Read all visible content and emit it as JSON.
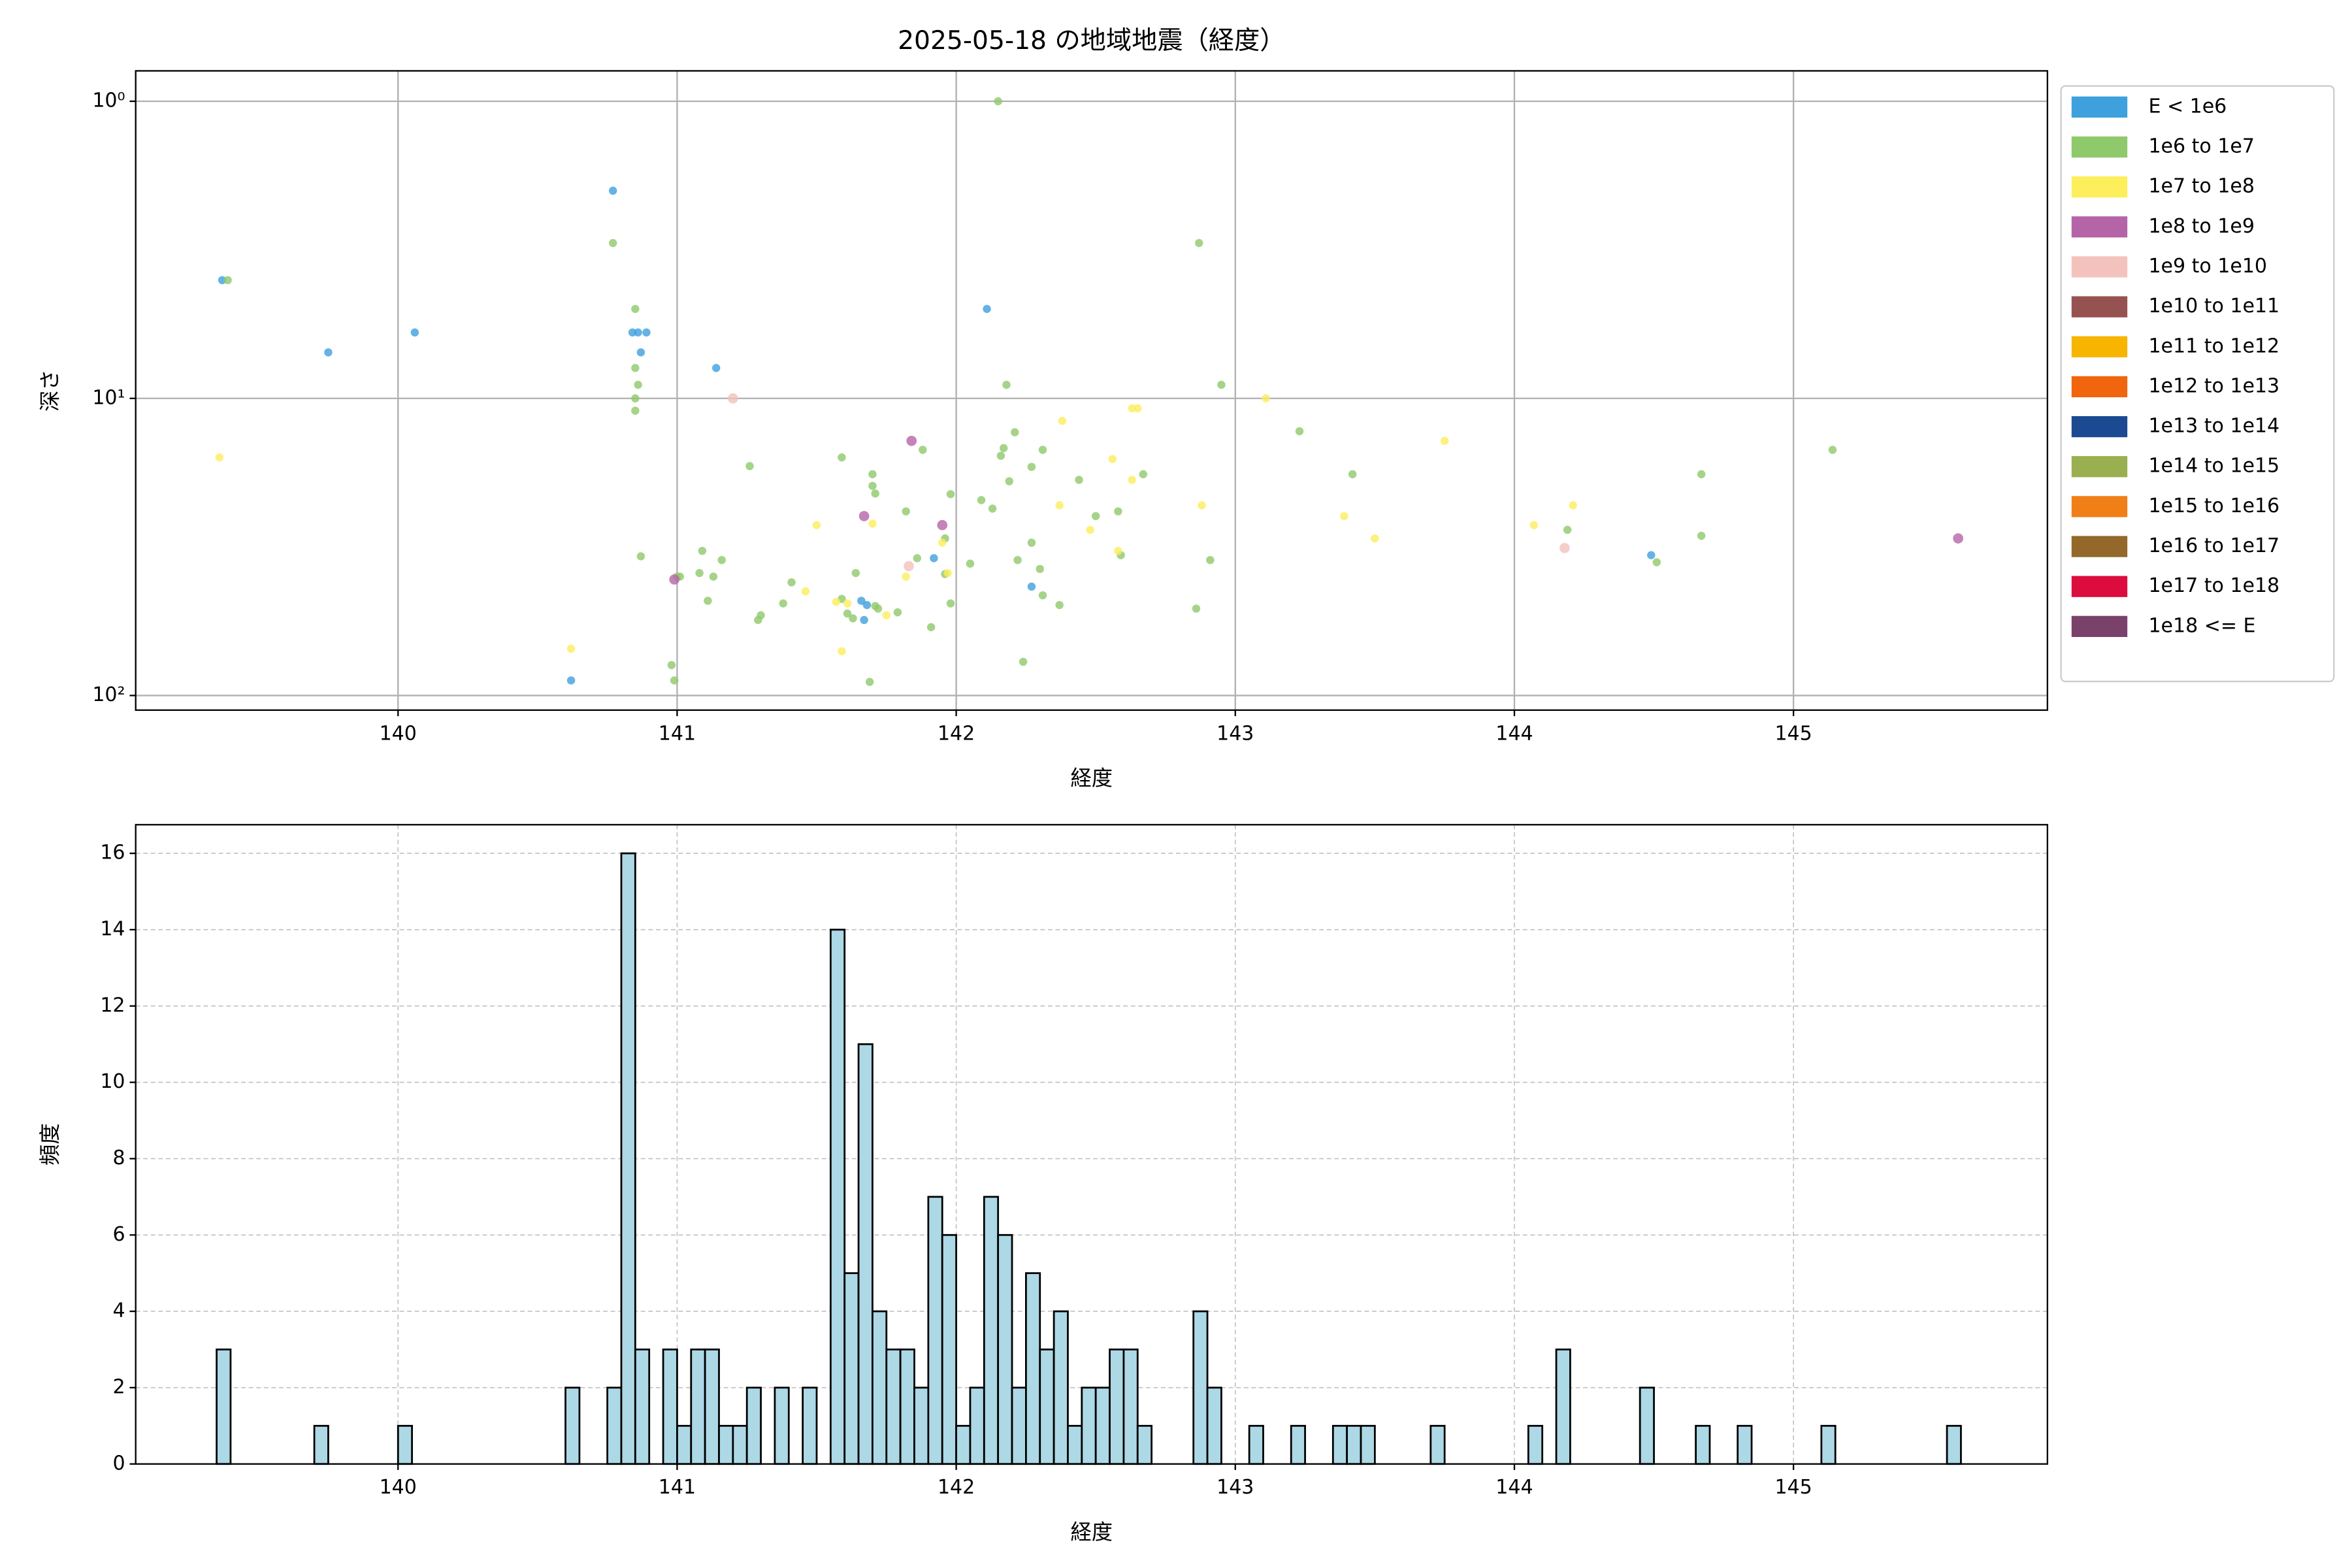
{
  "chart_data": [
    {
      "type": "scatter",
      "title": "2025-05-18 の地域地震（経度）",
      "xlabel": "経度",
      "ylabel": "深さ",
      "xlim": [
        139.06,
        145.91
      ],
      "ylim": [
        0.79,
        112
      ],
      "y_log": true,
      "y_inverted": true,
      "xticks": [
        140,
        141,
        142,
        143,
        144,
        145
      ],
      "yticks": [
        {
          "value": 1,
          "label": "10⁰"
        },
        {
          "value": 10,
          "label": "10¹"
        },
        {
          "value": 100,
          "label": "10²"
        }
      ],
      "grid": true,
      "legend": "outside-right",
      "series": [
        {
          "name": "E < 1e6",
          "color": "#3ea0dd",
          "x": [
            139.37,
            139.75,
            140.06,
            140.77,
            140.84,
            140.86,
            140.89,
            140.87,
            141.14,
            142.11,
            140.62,
            141.92,
            141.66,
            141.68,
            141.67,
            142.27,
            144.49
          ],
          "values": [
            4.0,
            7.0,
            6.0,
            2.0,
            6.0,
            6.0,
            6.0,
            7.0,
            7.9,
            5.0,
            89,
            34.5,
            48,
            49.6,
            55.7,
            43,
            33.7
          ]
        },
        {
          "name": "1e6 to 1e7",
          "color": "#8ec96b",
          "x": [
            139.39,
            142.15,
            140.77,
            142.87,
            140.85,
            140.85,
            140.86,
            140.85,
            140.85,
            142.18,
            142.95,
            143.23,
            145.14,
            144.67,
            144.19,
            144.67,
            144.51,
            143.42,
            140.87,
            141.26,
            141.59,
            141.7,
            141.7,
            141.71,
            141.88,
            141.82,
            141.98,
            142.09,
            142.13,
            142.16,
            142.17,
            142.21,
            142.19,
            142.27,
            142.31,
            142.44,
            142.5,
            142.58,
            142.67,
            142.22,
            142.27,
            142.3,
            142.05,
            141.96,
            141.96,
            141.86,
            141.64,
            141.16,
            141.09,
            141.08,
            141.13,
            141.01,
            141.11,
            141.41,
            141.38,
            141.3,
            141.29,
            141.59,
            141.61,
            141.63,
            141.71,
            141.79,
            141.72,
            141.91,
            141.98,
            142.37,
            142.31,
            142.59,
            142.91,
            142.86,
            140.98,
            140.99,
            141.69,
            142.24,
            141.0
          ],
          "values": [
            4.0,
            1.0,
            3.0,
            3.0,
            5.0,
            7.9,
            9.0,
            10,
            11,
            9.0,
            9.0,
            12.9,
            14.9,
            18,
            27.7,
            29,
            35.6,
            18,
            34,
            16.9,
            15.8,
            18,
            19.7,
            20.9,
            14.9,
            24,
            21,
            22,
            23.5,
            15.6,
            14.7,
            13,
            19,
            17,
            14.9,
            18.8,
            24.9,
            24,
            18,
            35,
            30.6,
            37.5,
            36,
            29.6,
            39,
            34.5,
            38.7,
            35,
            32.6,
            38.7,
            39.8,
            39.8,
            48,
            41.6,
            49,
            53.7,
            55.7,
            47.3,
            53,
            55,
            50,
            52.5,
            51,
            58.9,
            49,
            49.6,
            46,
            33.7,
            35,
            51,
            79,
            89,
            90,
            77,
            39.8
          ]
        },
        {
          "name": "1e7 to 1e8",
          "color": "#fdee5c",
          "x": [
            139.36,
            141.7,
            141.5,
            142.38,
            142.63,
            142.65,
            143.11,
            142.56,
            142.63,
            142.37,
            142.48,
            142.88,
            143.75,
            143.39,
            143.5,
            144.07,
            144.21,
            142.58,
            141.95,
            141.97,
            141.82,
            141.46,
            141.57,
            141.61,
            141.75,
            141.59,
            140.62
          ],
          "values": [
            15.8,
            26.4,
            26.7,
            11.9,
            10.8,
            10.8,
            10,
            16,
            18.8,
            22.9,
            27.7,
            22.9,
            13.9,
            24.9,
            29.6,
            26.7,
            22.9,
            32.6,
            30.6,
            38.7,
            39.8,
            44.6,
            48.4,
            49,
            53.7,
            71,
            69.6
          ]
        },
        {
          "name": "1e8 to 1e9",
          "color": "#b565a7",
          "x": [
            141.84,
            141.67,
            141.95,
            140.99,
            145.59
          ],
          "values": [
            13.9,
            24.9,
            26.7,
            40.7,
            29.6
          ]
        },
        {
          "name": "1e9 to 1e10",
          "color": "#f4c2bc",
          "x": [
            141.2,
            141.83,
            144.18
          ],
          "values": [
            10,
            36.7,
            31.9
          ]
        },
        {
          "name": "1e10 to 1e11",
          "color": "#955251",
          "x": [],
          "values": []
        },
        {
          "name": "1e11 to 1e12",
          "color": "#f7b500",
          "x": [],
          "values": []
        },
        {
          "name": "1e12 to 1e13",
          "color": "#f0650e",
          "x": [],
          "values": []
        },
        {
          "name": "1e13 to 1e14",
          "color": "#1b4a93",
          "x": [],
          "values": []
        },
        {
          "name": "1e14 to 1e15",
          "color": "#9aaf4f",
          "x": [],
          "values": []
        },
        {
          "name": "1e15 to 1e16",
          "color": "#f07f17",
          "x": [],
          "values": []
        },
        {
          "name": "1e16 to 1e17",
          "color": "#93682a",
          "x": [],
          "values": []
        },
        {
          "name": "1e17 to 1e18",
          "color": "#dc0d3e",
          "x": [],
          "values": []
        },
        {
          "name": "1e18 <= E",
          "color": "#7a426b",
          "x": [],
          "values": []
        }
      ]
    },
    {
      "type": "histogram",
      "xlabel": "経度",
      "ylabel": "頻度",
      "xlim": [
        139.06,
        145.91
      ],
      "ylim": [
        0,
        16.75
      ],
      "xticks": [
        140,
        141,
        142,
        143,
        144,
        145
      ],
      "yticks": [
        0,
        2,
        4,
        6,
        8,
        10,
        12,
        14,
        16
      ],
      "grid": true,
      "grid_style": "dashed",
      "color": "#add8e6",
      "edgecolor": "#000000",
      "bins": [
        139.35,
        139.4,
        139.45,
        139.5,
        139.55,
        139.6,
        139.65,
        139.7,
        139.75,
        139.8,
        139.85,
        139.9,
        139.95,
        140,
        140.05,
        140.1,
        140.15,
        140.2,
        140.25,
        140.3,
        140.35,
        140.4,
        140.45,
        140.5,
        140.55,
        140.6,
        140.65,
        140.7,
        140.75,
        140.8,
        140.85,
        140.9,
        140.95,
        141,
        141.05,
        141.1,
        141.15,
        141.2,
        141.25,
        141.3,
        141.35,
        141.4,
        141.45,
        141.5,
        141.55,
        141.6,
        141.65,
        141.7,
        141.75,
        141.8,
        141.85,
        141.9,
        141.95,
        142,
        142.05,
        142.1,
        142.15,
        142.2,
        142.25,
        142.3,
        142.35,
        142.4,
        142.45,
        142.5,
        142.55,
        142.6,
        142.65,
        142.7,
        142.75,
        142.8,
        142.85,
        142.9,
        142.95,
        143,
        143.05,
        143.1,
        143.15,
        143.2,
        143.25,
        143.3,
        143.35,
        143.4,
        143.45,
        143.5,
        143.55,
        143.6,
        143.65,
        143.7,
        143.75,
        143.8,
        143.85,
        143.9,
        143.95,
        144,
        144.05,
        144.1,
        144.15,
        144.2,
        144.25,
        144.3,
        144.35,
        144.4,
        144.45,
        144.5,
        144.55,
        144.6,
        144.65,
        144.7,
        144.75,
        144.8,
        144.85,
        144.9,
        144.95,
        145,
        145.05,
        145.1,
        145.15,
        145.2,
        145.25,
        145.3,
        145.35,
        145.4,
        145.45,
        145.5,
        145.55,
        145.6,
        145.65
      ],
      "values": [
        3,
        0,
        0,
        0,
        0,
        0,
        0,
        1,
        0,
        0,
        0,
        0,
        0,
        1,
        0,
        0,
        0,
        0,
        0,
        0,
        0,
        0,
        0,
        0,
        0,
        2,
        0,
        0,
        2,
        16,
        3,
        0,
        3,
        1,
        3,
        3,
        1,
        1,
        2,
        0,
        2,
        0,
        2,
        0,
        14,
        5,
        11,
        4,
        3,
        3,
        2,
        7,
        6,
        1,
        2,
        7,
        6,
        2,
        5,
        3,
        4,
        1,
        2,
        2,
        3,
        3,
        1,
        0,
        0,
        0,
        4,
        2,
        0,
        0,
        1,
        0,
        0,
        1,
        0,
        0,
        1,
        1,
        1,
        0,
        0,
        0,
        0,
        1,
        0,
        0,
        0,
        0,
        0,
        0,
        1,
        0,
        3,
        0,
        0,
        0,
        0,
        0,
        2,
        0,
        0,
        0,
        1,
        0,
        0,
        1,
        0,
        0,
        0,
        0,
        0,
        1,
        0,
        0,
        0,
        0,
        0,
        0,
        0,
        0,
        1,
        0
      ]
    }
  ]
}
